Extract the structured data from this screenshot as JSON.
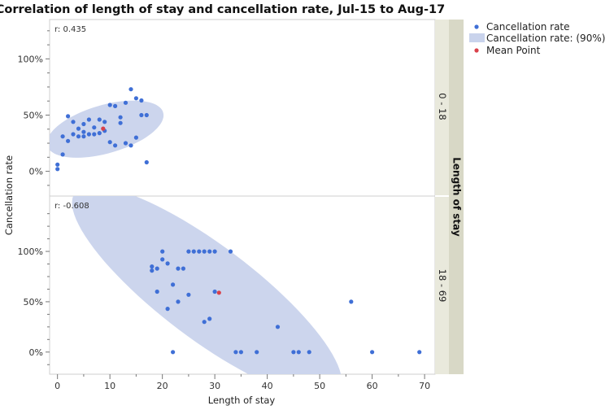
{
  "chart_data": {
    "type": "scatter",
    "title": "Correlation of length of stay and cancellation rate, Jul-15 to Aug-17",
    "xlabel": "Length of stay",
    "ylabel": "Cancellation rate",
    "group_label": "Length of stay",
    "x_ticks": [
      "0",
      "10",
      "20",
      "30",
      "40",
      "50",
      "60",
      "70"
    ],
    "y_ticks": [
      "0%",
      "50%",
      "100%"
    ],
    "xlim": [
      -1.5,
      72
    ],
    "legend": {
      "placement": "top-right",
      "items": [
        {
          "label": "Cancellation rate",
          "kind": "point",
          "color": "#3f6fd6"
        },
        {
          "label": "Cancellation rate: (90%)",
          "kind": "ellipse",
          "color": "#c9d3ec"
        },
        {
          "label": "Mean Point",
          "kind": "point",
          "color": "#d9414a"
        }
      ]
    },
    "panels": [
      {
        "group": "0 - 18",
        "r_label": "r: 0.435",
        "ylim": [
          -0.22,
          1.35
        ],
        "ellipse": {
          "center": [
            9.1,
            0.375
          ],
          "semi_axes": [
            11.5,
            0.215
          ],
          "angle_deg": 16
        },
        "mean_point": {
          "x": 8.7,
          "y": 0.38
        },
        "points": [
          {
            "x": 0,
            "y": 0.02
          },
          {
            "x": 0,
            "y": 0.06
          },
          {
            "x": 1,
            "y": 0.15
          },
          {
            "x": 1,
            "y": 0.31
          },
          {
            "x": 2,
            "y": 0.27
          },
          {
            "x": 2,
            "y": 0.49
          },
          {
            "x": 3,
            "y": 0.33
          },
          {
            "x": 3,
            "y": 0.44
          },
          {
            "x": 4,
            "y": 0.31
          },
          {
            "x": 4,
            "y": 0.38
          },
          {
            "x": 5,
            "y": 0.31
          },
          {
            "x": 5,
            "y": 0.35
          },
          {
            "x": 5,
            "y": 0.42
          },
          {
            "x": 6,
            "y": 0.33
          },
          {
            "x": 6,
            "y": 0.46
          },
          {
            "x": 7,
            "y": 0.33
          },
          {
            "x": 7,
            "y": 0.39
          },
          {
            "x": 8,
            "y": 0.34
          },
          {
            "x": 8,
            "y": 0.46
          },
          {
            "x": 9,
            "y": 0.36
          },
          {
            "x": 9,
            "y": 0.44
          },
          {
            "x": 10,
            "y": 0.26
          },
          {
            "x": 10,
            "y": 0.59
          },
          {
            "x": 11,
            "y": 0.23
          },
          {
            "x": 11,
            "y": 0.58
          },
          {
            "x": 12,
            "y": 0.43
          },
          {
            "x": 12,
            "y": 0.48
          },
          {
            "x": 13,
            "y": 0.25
          },
          {
            "x": 13,
            "y": 0.61
          },
          {
            "x": 14,
            "y": 0.23
          },
          {
            "x": 14,
            "y": 0.73
          },
          {
            "x": 15,
            "y": 0.3
          },
          {
            "x": 15,
            "y": 0.65
          },
          {
            "x": 16,
            "y": 0.5
          },
          {
            "x": 16,
            "y": 0.63
          },
          {
            "x": 17,
            "y": 0.08
          },
          {
            "x": 17,
            "y": 0.5
          }
        ]
      },
      {
        "group": "18 - 69",
        "r_label": "r: -0.608",
        "ylim": [
          -0.22,
          1.55
        ],
        "ellipse": {
          "center": [
            28.5,
            0.595
          ],
          "semi_axes": [
            31.5,
            0.465
          ],
          "angle_deg": -37
        },
        "mean_point": {
          "x": 30.8,
          "y": 0.59
        },
        "points": [
          {
            "x": 18,
            "y": 0.81
          },
          {
            "x": 18,
            "y": 0.85
          },
          {
            "x": 19,
            "y": 0.6
          },
          {
            "x": 19,
            "y": 0.83
          },
          {
            "x": 20,
            "y": 0.92
          },
          {
            "x": 20,
            "y": 1.0
          },
          {
            "x": 21,
            "y": 0.43
          },
          {
            "x": 21,
            "y": 0.88
          },
          {
            "x": 22,
            "y": 0.0
          },
          {
            "x": 22,
            "y": 0.67
          },
          {
            "x": 23,
            "y": 0.5
          },
          {
            "x": 23,
            "y": 0.83
          },
          {
            "x": 24,
            "y": 0.83
          },
          {
            "x": 25,
            "y": 0.57
          },
          {
            "x": 25,
            "y": 1.0
          },
          {
            "x": 26,
            "y": 1.0
          },
          {
            "x": 27,
            "y": 1.0
          },
          {
            "x": 28,
            "y": 0.3
          },
          {
            "x": 28,
            "y": 1.0
          },
          {
            "x": 29,
            "y": 0.33
          },
          {
            "x": 29,
            "y": 1.0
          },
          {
            "x": 30,
            "y": 0.6
          },
          {
            "x": 30,
            "y": 1.0
          },
          {
            "x": 33,
            "y": 1.0
          },
          {
            "x": 34,
            "y": 0.0
          },
          {
            "x": 35,
            "y": 0.0
          },
          {
            "x": 38,
            "y": 0.0
          },
          {
            "x": 42,
            "y": 0.25
          },
          {
            "x": 45,
            "y": 0.0
          },
          {
            "x": 46,
            "y": 0.0
          },
          {
            "x": 48,
            "y": 0.0
          },
          {
            "x": 56,
            "y": 0.5
          },
          {
            "x": 60,
            "y": 0.0
          },
          {
            "x": 69,
            "y": 0.0
          }
        ]
      }
    ],
    "colors": {
      "point": "#3f6fd6",
      "mean": "#d9414a",
      "ellipse_fill": "#c9d3ec",
      "strip_inner": "#e9e9dc",
      "strip_outer": "#d8d8c6",
      "frame": "#cfcfcf",
      "tick": "#777777"
    }
  }
}
